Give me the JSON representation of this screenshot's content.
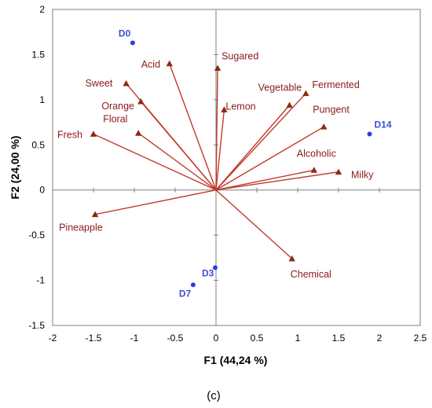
{
  "chart_data": {
    "type": "scatter",
    "subtype": "pca-biplot",
    "xlabel": "F1 (44,24 %)",
    "ylabel": "F2 (24,00 %)",
    "xlim": [
      -2,
      2.5
    ],
    "ylim": [
      -1.5,
      2
    ],
    "xticks": [
      "-2",
      "-1.5",
      "-1",
      "-0.5",
      "0",
      "0.5",
      "1",
      "1.5",
      "2",
      "2.5"
    ],
    "yticks": [
      "2",
      "1.5",
      "1",
      "0.5",
      "0",
      "-0.5",
      "-1",
      "-1.5"
    ],
    "grid": false,
    "series": [
      {
        "kind": "variables",
        "color": "#c0392b",
        "marker_color": "#8b2a14",
        "points": [
          {
            "label": "Acid",
            "x": -0.57,
            "y": 1.4
          },
          {
            "label": "Sugared",
            "x": 0.02,
            "y": 1.35
          },
          {
            "label": "Sweet",
            "x": -1.1,
            "y": 1.18
          },
          {
            "label": "Orange",
            "x": -0.92,
            "y": 0.98
          },
          {
            "label": "Lemon",
            "x": 0.1,
            "y": 0.89
          },
          {
            "label": "Vegetable",
            "x": 0.9,
            "y": 0.94
          },
          {
            "label": "Fermented",
            "x": 1.1,
            "y": 1.07
          },
          {
            "label": "Floral",
            "x": -0.95,
            "y": 0.63
          },
          {
            "label": "Fresh",
            "x": -1.5,
            "y": 0.62
          },
          {
            "label": "Pungent",
            "x": 1.32,
            "y": 0.7
          },
          {
            "label": "Alcoholic",
            "x": 1.2,
            "y": 0.22
          },
          {
            "label": "Milky",
            "x": 1.5,
            "y": 0.2
          },
          {
            "label": "Pineapple",
            "x": -1.48,
            "y": -0.27
          },
          {
            "label": "Chemical",
            "x": 0.93,
            "y": -0.76
          }
        ]
      },
      {
        "kind": "observations",
        "color": "#2a3fe0",
        "points": [
          {
            "label": "D0",
            "x": -1.02,
            "y": 1.63
          },
          {
            "label": "D14",
            "x": 1.88,
            "y": 0.62
          },
          {
            "label": "D3",
            "x": -0.01,
            "y": -0.86
          },
          {
            "label": "D7",
            "x": -0.28,
            "y": -1.05
          }
        ]
      }
    ]
  },
  "caption": "(c)"
}
